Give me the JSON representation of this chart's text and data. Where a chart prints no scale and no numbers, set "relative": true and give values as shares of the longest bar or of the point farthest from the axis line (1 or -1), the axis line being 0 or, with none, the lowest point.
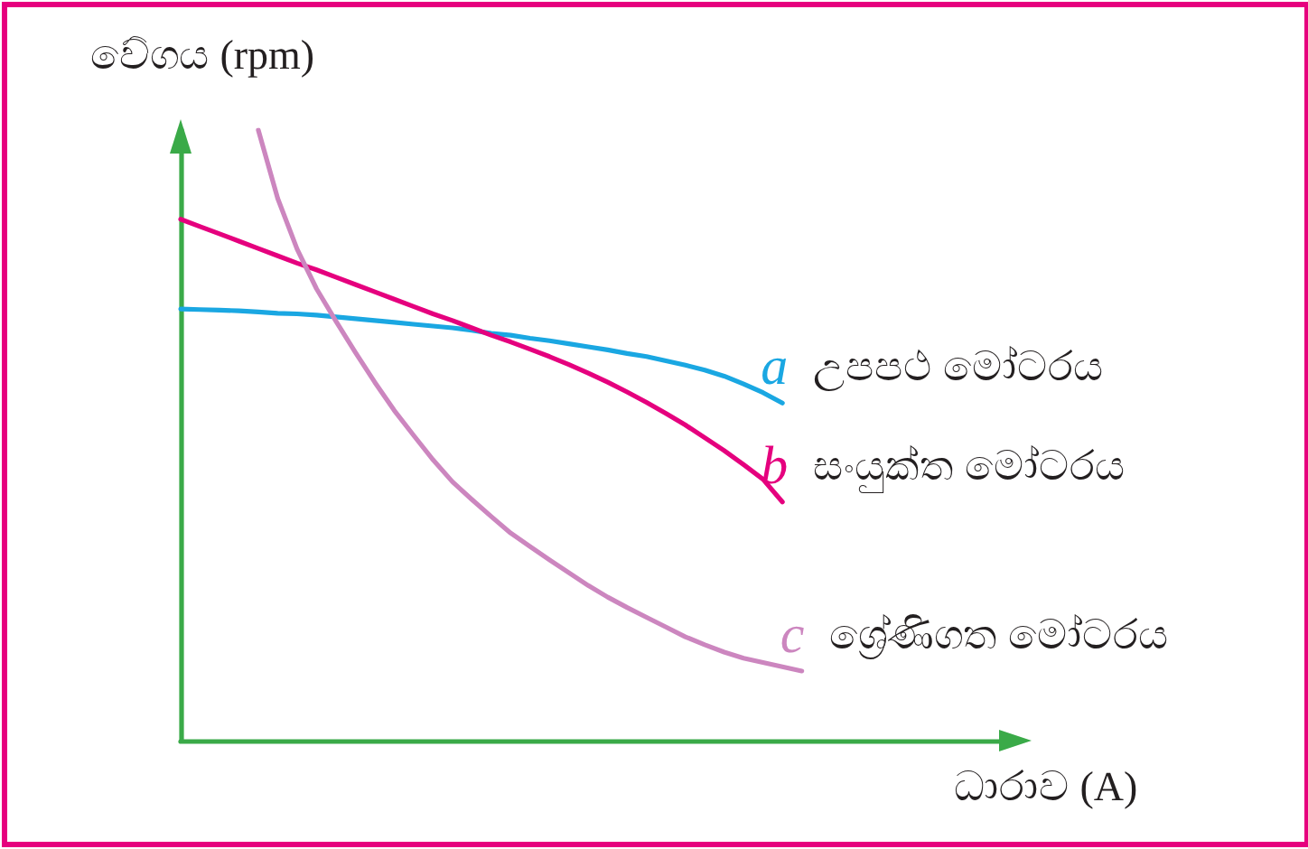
{
  "chart_data": {
    "type": "line",
    "relative": true,
    "xlabel": "ධාරාව (A)",
    "ylabel": "වේගය (rpm)",
    "marker": "none",
    "categories": [
      null,
      null,
      null,
      null,
      null,
      null,
      null,
      null,
      null,
      null,
      null,
      null,
      null,
      null,
      null,
      null,
      null,
      null,
      null,
      null,
      null,
      null,
      null,
      null,
      null,
      null,
      null,
      null,
      null,
      null,
      null,
      null,
      null,
      null,
      null,
      null,
      null,
      null,
      null,
      null,
      null,
      null,
      null,
      null
    ],
    "series": [
      {
        "name": "a උපපථ මෝටරය",
        "color": "#1aa7e2",
        "values": [
          0.707,
          0.706,
          0.705,
          0.704,
          0.702,
          0.7,
          0.699,
          0.697,
          0.694,
          0.691,
          0.688,
          0.685,
          0.682,
          0.679,
          0.676,
          0.672,
          0.667,
          0.664,
          0.659,
          0.655,
          0.65,
          0.645,
          0.64,
          0.634,
          0.629,
          0.622,
          0.615,
          0.607,
          0.597,
          0.584,
          0.57,
          0.553,
          null,
          null,
          null,
          null,
          null,
          null,
          null,
          null,
          null,
          null,
          null,
          null
        ]
      },
      {
        "name": "b සංයුක්ත මෝටරය",
        "color": "#e5007e",
        "values": [
          0.854,
          0.842,
          0.83,
          0.818,
          0.806,
          0.794,
          0.782,
          0.771,
          0.759,
          0.747,
          0.735,
          0.723,
          0.711,
          0.699,
          0.688,
          0.676,
          0.664,
          0.653,
          0.641,
          0.629,
          0.616,
          0.602,
          0.587,
          0.571,
          0.554,
          0.536,
          0.517,
          0.496,
          0.475,
          0.452,
          0.428,
          0.391,
          null,
          null,
          null,
          null,
          null,
          null,
          null,
          null,
          null,
          null,
          null,
          null
        ]
      },
      {
        "name": "c ශ්‍රේණිගත මෝටරය",
        "color": "#cc86bf",
        "values": [
          null,
          null,
          null,
          null,
          1,
          0.888,
          0.805,
          0.74,
          0.687,
          0.636,
          0.587,
          0.541,
          0.5,
          0.46,
          0.424,
          0.395,
          0.367,
          0.34,
          0.318,
          0.296,
          0.275,
          0.254,
          0.235,
          0.218,
          0.202,
          0.186,
          0.17,
          0.157,
          0.145,
          0.135,
          0.128,
          0.121,
          0.114,
          null,
          null,
          null,
          null,
          null,
          null,
          null,
          null,
          null,
          null,
          null
        ]
      }
    ]
  }
}
